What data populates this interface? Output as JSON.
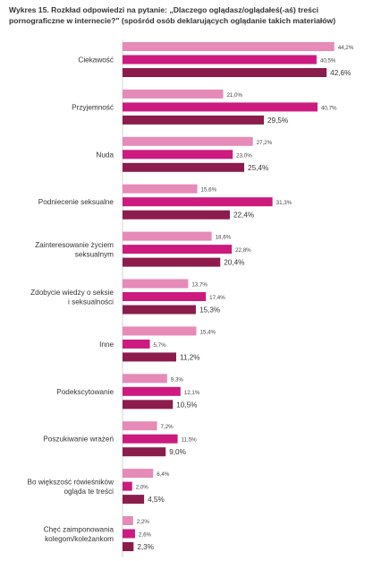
{
  "title": "Wykres 15. Rozkład odpowiedzi na pytanie: „Dlaczego oglądasz/oglądałeś(-aś) treści pornograficzne w internecie?\" (spośród osób deklarujących oglądanie takich materiałów)",
  "chart_data": {
    "type": "bar",
    "orientation": "horizontal",
    "xlim": [
      0,
      45
    ],
    "categories": [
      [
        "Ciekawość"
      ],
      [
        "Przyjemność"
      ],
      [
        "Nuda"
      ],
      [
        "Podniecenie seksualne"
      ],
      [
        "Zainteresowanie życiem",
        "seksualnym"
      ],
      [
        "Zdobycie wiedzy o seksie",
        "i seksualności"
      ],
      [
        "Inne"
      ],
      [
        "Podekscytowanie"
      ],
      [
        "Poszukiwanie wrażeń"
      ],
      [
        "Bo większość rówieśników",
        "ogląda te treści"
      ],
      [
        "Chęć zaimponowania",
        "kolegom/koleżankom"
      ]
    ],
    "series": [
      {
        "color": "#e68ab8",
        "values": [
          44.2,
          21.0,
          27.2,
          15.6,
          18.6,
          13.7,
          15.4,
          9.3,
          7.2,
          6.4,
          2.2
        ],
        "labels": [
          "44,2%",
          "21,0%",
          "27,2%",
          "15,6%",
          "18,6%",
          "13,7%",
          "15,4%",
          "9,3%",
          "7,2%",
          "6,4%",
          "2,2%"
        ]
      },
      {
        "color": "#cc1a7f",
        "values": [
          40.5,
          40.7,
          23.0,
          31.3,
          22.8,
          17.4,
          5.7,
          12.1,
          11.5,
          2.0,
          2.6
        ],
        "labels": [
          "40,5%",
          "40,7%",
          "23,0%",
          "31,3%",
          "22,8%",
          "17,4%",
          "5,7%",
          "12,1%",
          "11,5%",
          "2,0%",
          "2,6%"
        ]
      },
      {
        "color": "#8c1c4c",
        "values": [
          42.6,
          29.5,
          25.4,
          22.4,
          20.4,
          15.3,
          11.2,
          10.5,
          9.0,
          4.5,
          2.3
        ],
        "labels": [
          "42,6%",
          "29,5%",
          "25,4%",
          "22,4%",
          "20,4%",
          "15,3%",
          "11,2%",
          "10,5%",
          "9,0%",
          "4,5%",
          "2,3%"
        ]
      }
    ]
  }
}
